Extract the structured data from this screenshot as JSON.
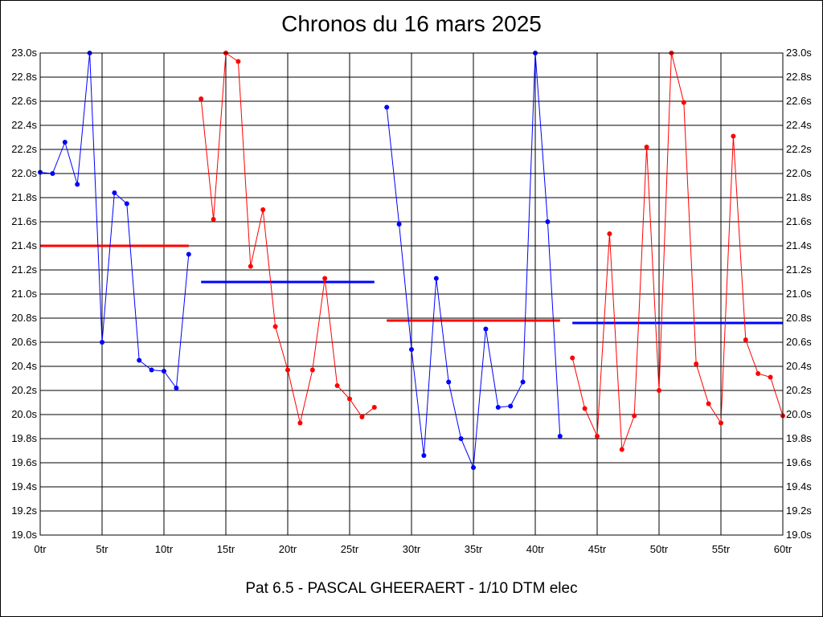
{
  "chart_data": {
    "type": "line",
    "title": "Chronos du 16 mars 2025",
    "subtitle": "Pat 6.5 - PASCAL GHEERAERT - 1/10 DTM elec",
    "xlabel": "",
    "ylabel": "",
    "xlim": [
      0,
      60
    ],
    "ylim": [
      19.0,
      23.0
    ],
    "grid": true,
    "x_ticks": [
      0,
      5,
      10,
      15,
      20,
      25,
      30,
      35,
      40,
      45,
      50,
      55,
      60
    ],
    "x_tick_labels": [
      "0tr",
      "5tr",
      "10tr",
      "15tr",
      "20tr",
      "25tr",
      "30tr",
      "35tr",
      "40tr",
      "45tr",
      "50tr",
      "55tr",
      "60tr"
    ],
    "y_ticks": [
      19.0,
      19.2,
      19.4,
      19.6,
      19.8,
      20.0,
      20.2,
      20.4,
      20.6,
      20.8,
      21.0,
      21.2,
      21.4,
      21.6,
      21.8,
      22.0,
      22.2,
      22.4,
      22.6,
      22.8,
      23.0
    ],
    "y_tick_labels": [
      "19.0s",
      "19.2s",
      "19.4s",
      "19.6s",
      "19.8s",
      "20.0s",
      "20.2s",
      "20.4s",
      "20.6s",
      "20.8s",
      "21.0s",
      "21.2s",
      "21.4s",
      "21.6s",
      "21.8s",
      "22.0s",
      "22.2s",
      "22.4s",
      "22.6s",
      "22.8s",
      "23.0s"
    ],
    "series": [
      {
        "color": "#0000ff",
        "x": [
          0,
          1,
          2,
          3,
          4,
          5,
          6,
          7,
          8,
          9,
          10,
          11,
          12
        ],
        "values": [
          22.01,
          22.0,
          22.26,
          21.91,
          23.0,
          20.6,
          21.84,
          21.75,
          20.45,
          20.37,
          20.36,
          20.22,
          21.33
        ]
      },
      {
        "color": "#ff0000",
        "x": [
          13,
          14,
          15,
          16,
          17,
          18,
          19,
          20,
          21,
          22,
          23,
          24,
          25,
          26,
          27
        ],
        "values": [
          22.62,
          21.62,
          23.0,
          22.93,
          21.23,
          21.7,
          20.73,
          20.37,
          19.93,
          20.37,
          21.13,
          20.24,
          20.13,
          19.98,
          20.06
        ]
      },
      {
        "color": "#0000ff",
        "x": [
          28,
          29,
          30,
          31,
          32,
          33,
          34,
          35,
          36,
          37,
          38,
          39,
          40,
          41,
          42
        ],
        "values": [
          22.55,
          21.58,
          20.54,
          19.66,
          21.13,
          20.27,
          19.8,
          19.56,
          20.71,
          20.06,
          20.07,
          20.27,
          23.0,
          21.6,
          19.82
        ]
      },
      {
        "color": "#ff0000",
        "x": [
          43,
          44,
          45,
          46,
          47,
          48,
          49,
          50,
          51,
          52,
          53,
          54,
          55,
          56,
          57,
          58,
          59,
          60
        ],
        "values": [
          20.47,
          20.05,
          19.82,
          21.5,
          19.71,
          19.99,
          22.22,
          20.2,
          23.0,
          22.59,
          20.42,
          20.09,
          19.93,
          22.31,
          20.62,
          20.34,
          20.31,
          19.99
        ]
      }
    ],
    "average_lines": [
      {
        "color": "#ff0000",
        "x_start": 0,
        "x_end": 12,
        "value": 21.4
      },
      {
        "color": "#0000ff",
        "x_start": 13,
        "x_end": 27,
        "value": 21.1
      },
      {
        "color": "#ff0000",
        "x_start": 28,
        "x_end": 42,
        "value": 20.78
      },
      {
        "color": "#0000ff",
        "x_start": 43,
        "x_end": 60,
        "value": 20.76
      }
    ]
  }
}
